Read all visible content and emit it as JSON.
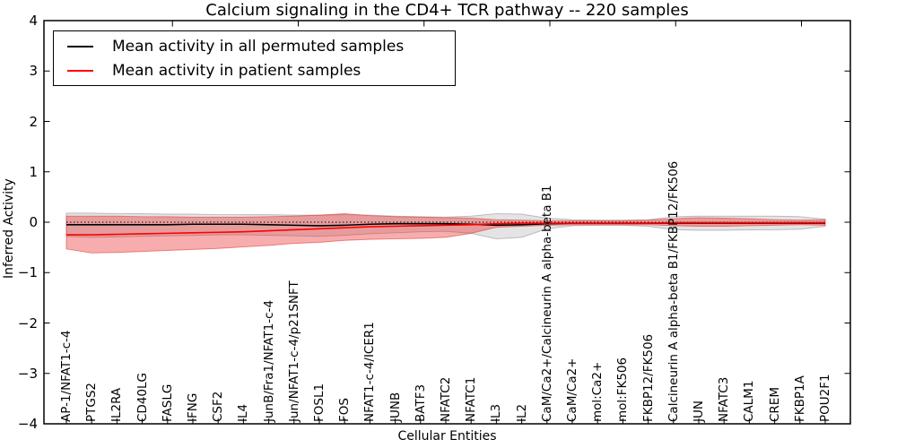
{
  "title": "Calcium signaling in the CD4+ TCR pathway -- 220 samples",
  "legend": {
    "items": [
      {
        "label": "Mean activity in all permuted samples",
        "color": "#000000"
      },
      {
        "label": "Mean activity in patient samples",
        "color": "#ff0000"
      }
    ]
  },
  "chart_data": {
    "type": "line",
    "title": "Calcium signaling in the CD4+ TCR pathway -- 220 samples",
    "xlabel": "Cellular Entities",
    "ylabel": "Inferred Activity",
    "ylim": [
      -4,
      4
    ],
    "ytick_labels": [
      "4",
      "3",
      "2",
      "1",
      "0",
      "−1",
      "−2",
      "−3",
      "−4"
    ],
    "ytick_values": [
      4,
      3,
      2,
      1,
      0,
      -1,
      -2,
      -3,
      -4
    ],
    "grid": false,
    "legend_position": "upper left",
    "zero_reference_line": 0,
    "categories": [
      "AP-1/NFAT1-c-4",
      "PTGS2",
      "IL2RA",
      "CD40LG",
      "FASLG",
      "IFNG",
      "CSF2",
      "IL4",
      "JunB/Fra1/NFAT1-c-4",
      "Jun/NFAT1-c-4/p21SNFT",
      "FOSL1",
      "FOS",
      "NFAT1-c-4/ICER1",
      "JUNB",
      "BATF3",
      "NFATC2",
      "NFATC1",
      "IL3",
      "IL2",
      "CaM/Ca2+/Calcineurin A alpha-beta B1",
      "CaM/Ca2+",
      "mol:Ca2+",
      "mol:FK506",
      "FKBP12/FK506",
      "Calcineurin A alpha-beta B1/FKBP12/FK506",
      "JUN",
      "NFATC3",
      "CALM1",
      "CREM",
      "FKBP1A",
      "POU2F1"
    ],
    "series": [
      {
        "name": "Mean activity in all permuted samples",
        "line_color": "#000000",
        "band_fill": "rgba(130,130,130,0.22)",
        "band_edge": "rgba(120,120,120,0.45)",
        "values": [
          -0.05,
          -0.05,
          -0.05,
          -0.05,
          -0.05,
          -0.04,
          -0.04,
          -0.04,
          -0.05,
          -0.06,
          -0.07,
          -0.06,
          -0.04,
          -0.03,
          -0.03,
          -0.03,
          -0.04,
          -0.06,
          -0.05,
          -0.03,
          -0.02,
          -0.02,
          -0.02,
          -0.02,
          -0.02,
          -0.02,
          -0.02,
          -0.02,
          -0.02,
          -0.02,
          -0.02
        ],
        "band_upper": [
          0.18,
          0.18,
          0.17,
          0.17,
          0.16,
          0.16,
          0.15,
          0.15,
          0.15,
          0.14,
          0.14,
          0.15,
          0.14,
          0.12,
          0.11,
          0.1,
          0.12,
          0.17,
          0.16,
          0.08,
          0.05,
          0.04,
          0.04,
          0.05,
          0.11,
          0.12,
          0.12,
          0.12,
          0.12,
          0.11,
          0.06
        ],
        "band_lower": [
          -0.28,
          -0.3,
          -0.29,
          -0.28,
          -0.27,
          -0.26,
          -0.25,
          -0.25,
          -0.26,
          -0.27,
          -0.28,
          -0.26,
          -0.23,
          -0.21,
          -0.19,
          -0.18,
          -0.22,
          -0.33,
          -0.3,
          -0.13,
          -0.07,
          -0.06,
          -0.06,
          -0.08,
          -0.15,
          -0.16,
          -0.16,
          -0.15,
          -0.15,
          -0.14,
          -0.08
        ]
      },
      {
        "name": "Mean activity in patient samples",
        "line_color": "#ff0000",
        "band_fill": "rgba(235,40,40,0.38)",
        "band_edge": "rgba(225,50,50,0.55)",
        "values": [
          -0.25,
          -0.25,
          -0.24,
          -0.23,
          -0.22,
          -0.21,
          -0.2,
          -0.19,
          -0.17,
          -0.15,
          -0.13,
          -0.11,
          -0.09,
          -0.08,
          -0.07,
          -0.06,
          -0.05,
          -0.03,
          -0.02,
          -0.02,
          -0.02,
          -0.02,
          -0.02,
          -0.02,
          -0.01,
          -0.01,
          -0.01,
          -0.01,
          -0.01,
          -0.01,
          -0.01
        ],
        "band_upper": [
          0.12,
          0.12,
          0.12,
          0.11,
          0.11,
          0.1,
          0.1,
          0.1,
          0.11,
          0.12,
          0.14,
          0.17,
          0.13,
          0.11,
          0.1,
          0.09,
          0.08,
          0.05,
          0.04,
          0.03,
          0.03,
          0.03,
          0.03,
          0.04,
          0.07,
          0.09,
          0.08,
          0.07,
          0.05,
          0.04,
          0.05
        ],
        "band_lower": [
          -0.53,
          -0.61,
          -0.6,
          -0.58,
          -0.56,
          -0.54,
          -0.52,
          -0.49,
          -0.46,
          -0.42,
          -0.4,
          -0.36,
          -0.34,
          -0.33,
          -0.32,
          -0.3,
          -0.22,
          -0.1,
          -0.08,
          -0.06,
          -0.05,
          -0.05,
          -0.05,
          -0.05,
          -0.07,
          -0.08,
          -0.08,
          -0.07,
          -0.06,
          -0.05,
          -0.06
        ]
      }
    ]
  }
}
